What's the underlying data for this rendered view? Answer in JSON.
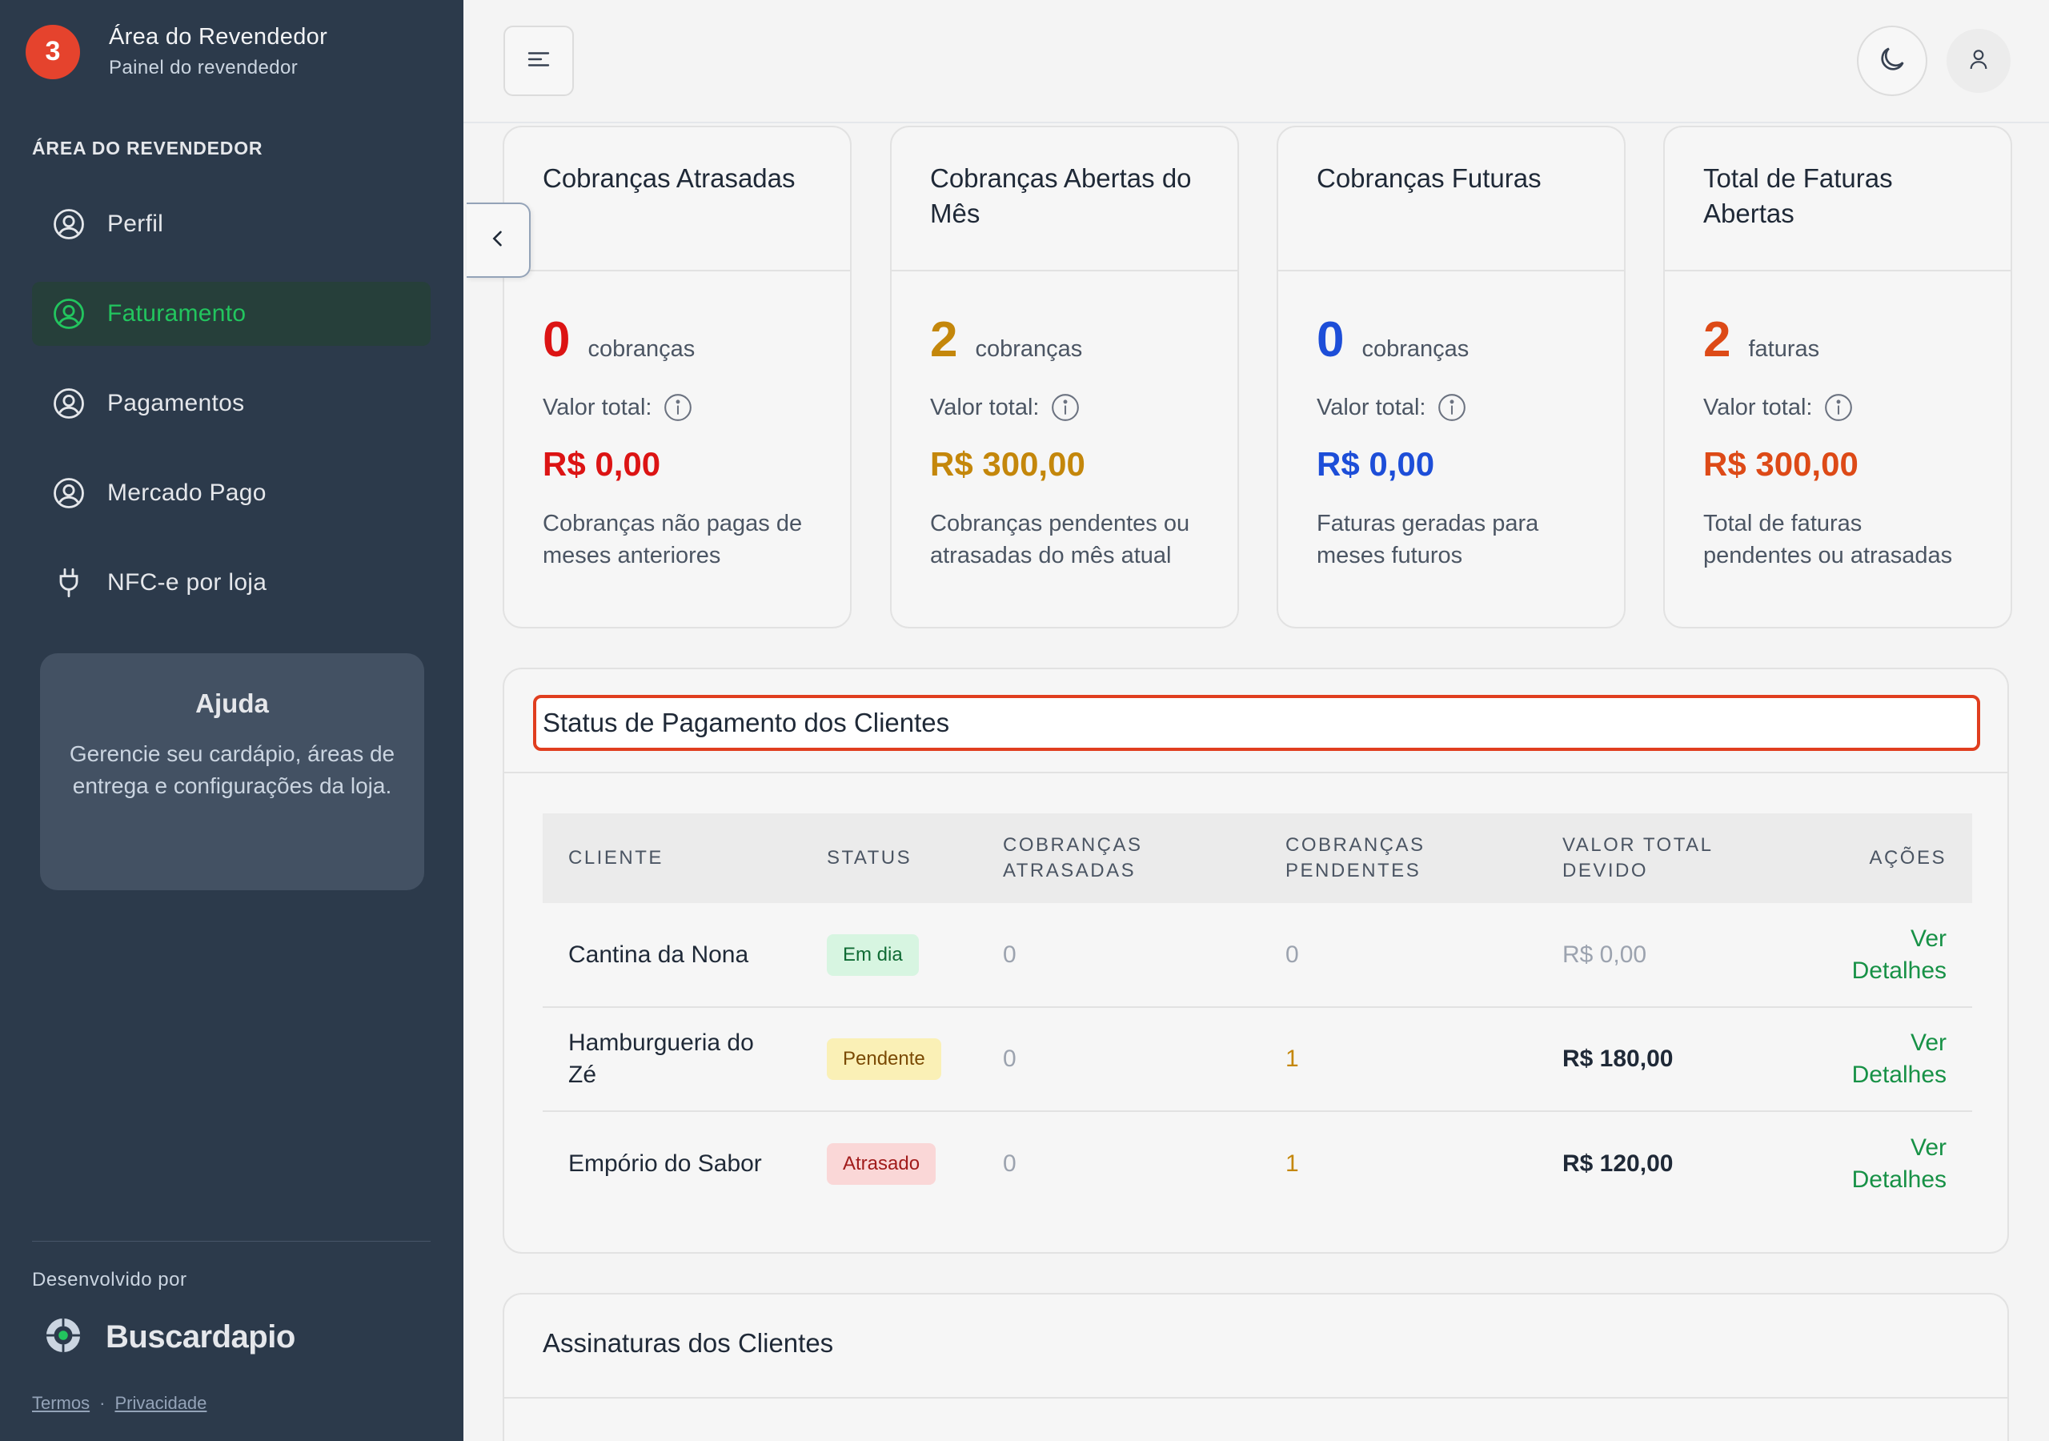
{
  "sidebar": {
    "brand_badge": "3",
    "brand_title": "Área do Revendedor",
    "brand_subtitle": "Painel do revendedor",
    "section_label": "ÁREA DO REVENDEDOR",
    "items": [
      {
        "label": "Perfil",
        "icon": "user-circle-icon",
        "active": false
      },
      {
        "label": "Faturamento",
        "icon": "user-circle-icon",
        "active": true
      },
      {
        "label": "Pagamentos",
        "icon": "user-circle-icon",
        "active": false
      },
      {
        "label": "Mercado Pago",
        "icon": "user-circle-icon",
        "active": false
      },
      {
        "label": "NFC-e por loja",
        "icon": "plug-icon",
        "active": false
      }
    ],
    "help": {
      "title": "Ajuda",
      "text": "Gerencie seu cardápio, áreas de entrega e configurações da loja."
    },
    "developed_by": "Desenvolvido por",
    "partner_name": "Buscardapio",
    "terms": "Termos",
    "separator": "·",
    "privacy": "Privacidade"
  },
  "topbar": {
    "menu_icon": "menu-icon",
    "theme_icon": "moon-icon",
    "user_icon": "user-icon"
  },
  "cards": [
    {
      "title": "Cobranças Atrasadas",
      "count": "0",
      "unit": "cobranças",
      "value_label": "Valor total:",
      "value": "R$ 0,00",
      "desc": "Cobranças não pagas de meses anteriores",
      "color": "#dc1414"
    },
    {
      "title": "Cobranças Abertas do Mês",
      "count": "2",
      "unit": "cobranças",
      "value_label": "Valor total:",
      "value": "R$ 300,00",
      "desc": "Cobranças pendentes ou atrasadas do mês atual",
      "color": "#c4870b"
    },
    {
      "title": "Cobranças Futuras",
      "count": "0",
      "unit": "cobranças",
      "value_label": "Valor total:",
      "value": "R$ 0,00",
      "desc": "Faturas geradas para meses futuros",
      "color": "#1d4ed8"
    },
    {
      "title": "Total de Faturas Abertas",
      "count": "2",
      "unit": "faturas",
      "value_label": "Valor total:",
      "value": "R$ 300,00",
      "desc": "Total de faturas pendentes ou atrasadas",
      "color": "#dd4a17"
    }
  ],
  "status_panel": {
    "title": "Status de Pagamento dos Clientes",
    "columns": [
      "CLIENTE",
      "STATUS",
      "COBRANÇAS ATRASADAS",
      "COBRANÇAS PENDENTES",
      "VALOR TOTAL DEVIDO",
      "AÇÕES"
    ],
    "rows": [
      {
        "client": "Cantina da Nona",
        "status": "Em dia",
        "overdue": "0",
        "pending": "0",
        "total": "R$ 0,00",
        "action": "Ver Detalhes"
      },
      {
        "client": "Hamburgueria do Zé",
        "status": "Pendente",
        "overdue": "0",
        "pending": "1",
        "total": "R$ 180,00",
        "action": "Ver Detalhes"
      },
      {
        "client": "Empório do Sabor",
        "status": "Atrasado",
        "overdue": "0",
        "pending": "1",
        "total": "R$ 120,00",
        "action": "Ver Detalhes"
      }
    ]
  },
  "subscriptions_panel": {
    "title": "Assinaturas dos Clientes"
  },
  "colors": {
    "sidebar_bg": "#2c3a4b",
    "accent_green": "#22c55e",
    "highlight_red": "#e03e1f"
  }
}
